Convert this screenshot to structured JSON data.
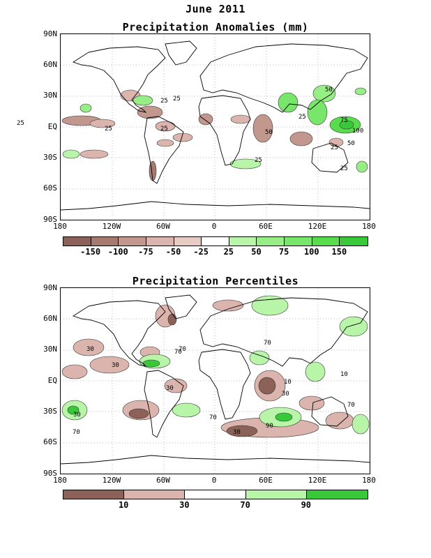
{
  "main_title": "June 2011",
  "panel1": {
    "title": "Precipitation Anomalies (mm)",
    "y_ticks": [
      "90N",
      "60N",
      "30N",
      "EQ",
      "30S",
      "60S",
      "90S"
    ],
    "x_ticks": [
      "180",
      "120W",
      "60W",
      "0",
      "60E",
      "120E",
      "180"
    ],
    "colorbar_colors": [
      "#8b6158",
      "#a77a70",
      "#c2978d",
      "#dbb5ad",
      "#e8cbc4",
      "#ffffff",
      "#b8f5a8",
      "#98ee86",
      "#78e66a",
      "#58dc4e",
      "#38c83a"
    ],
    "colorbar_labels": [
      "-150",
      "-100",
      "-75",
      "-50",
      "-25",
      "25",
      "50",
      "75",
      "100",
      "150"
    ],
    "contour_labels": [
      "25",
      "25",
      "25",
      "25",
      "25",
      "25",
      "50",
      "50",
      "75",
      "100",
      "25",
      "50",
      "25",
      "25"
    ]
  },
  "panel2": {
    "title": "Precipitation Percentiles",
    "y_ticks": [
      "90N",
      "60N",
      "30N",
      "EQ",
      "30S",
      "60S",
      "90S"
    ],
    "x_ticks": [
      "180",
      "120W",
      "60W",
      "0",
      "60E",
      "120E",
      "180"
    ],
    "colorbar_colors": [
      "#8b6158",
      "#dbb5ad",
      "#ffffff",
      "#b8f5a8",
      "#38c83a"
    ],
    "colorbar_labels": [
      "10",
      "30",
      "70",
      "90"
    ],
    "contour_labels": [
      "30",
      "70",
      "30",
      "70",
      "30",
      "10",
      "30",
      "70",
      "90",
      "30",
      "70",
      "70",
      "30",
      "70",
      "10"
    ]
  }
}
